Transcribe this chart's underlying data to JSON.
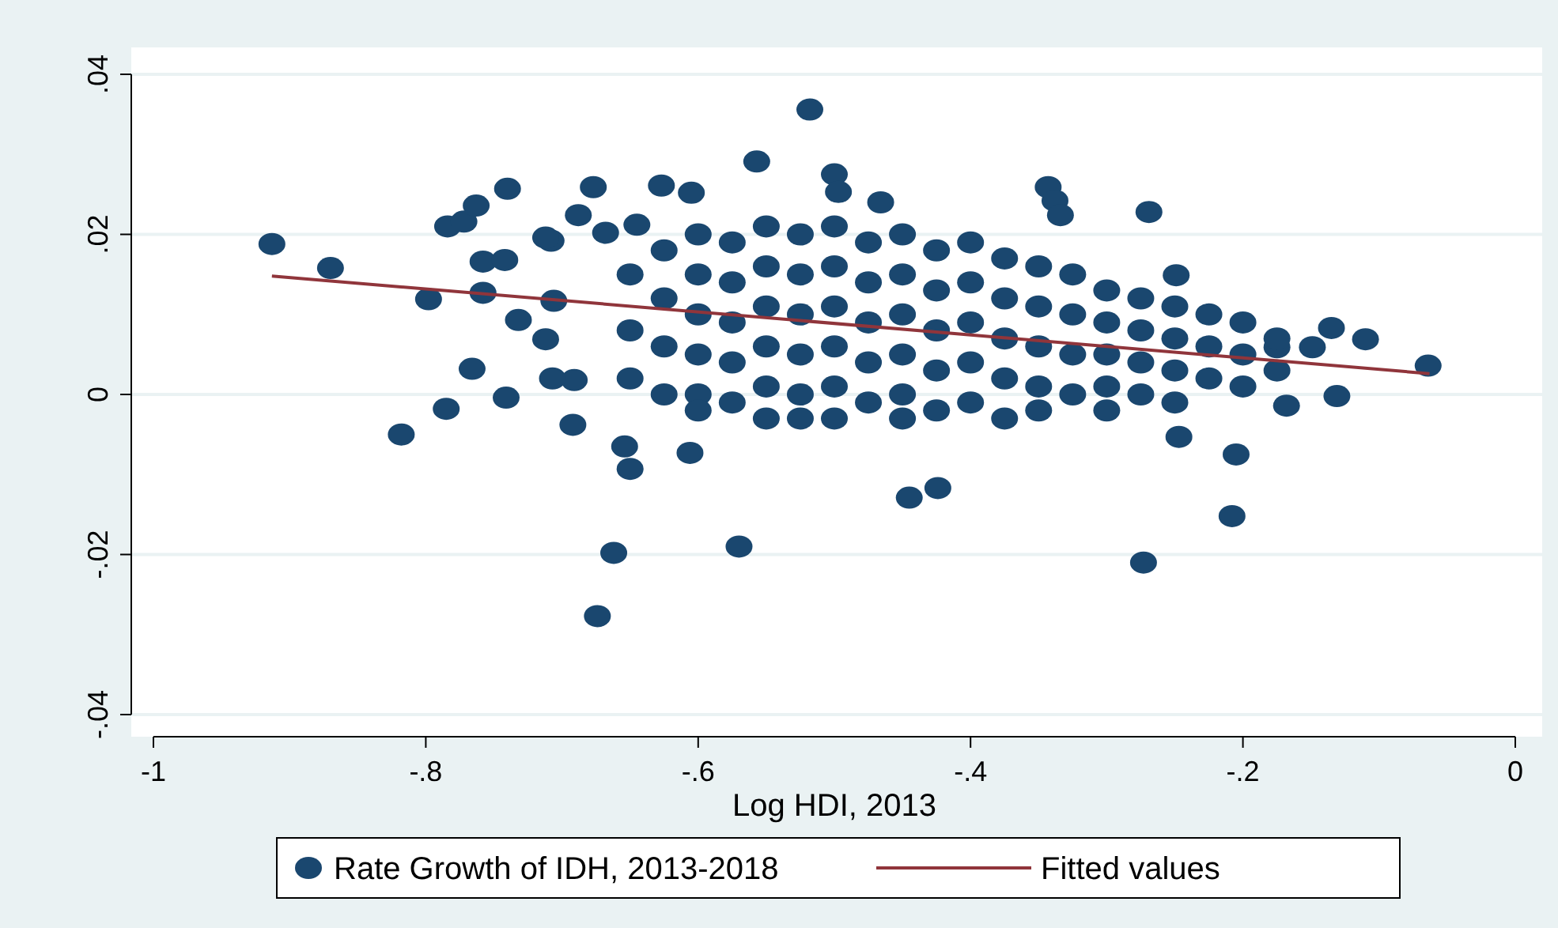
{
  "chart_data": {
    "type": "scatter",
    "xlabel": "Log HDI, 2013",
    "xlim": [
      -1,
      0
    ],
    "ylim": [
      -0.04,
      0.04
    ],
    "xticks": [
      -1,
      {
        "value": -0.8,
        "label": "-.8"
      },
      {
        "value": -0.6,
        "label": "-.6"
      },
      {
        "value": -0.4,
        "label": "-.4"
      },
      {
        "value": -0.2,
        "label": "-.2"
      },
      0
    ],
    "yticks": [
      {
        "value": -0.04,
        "label": "-.04"
      },
      {
        "value": -0.02,
        "label": "-.02"
      },
      0,
      {
        "value": 0.02,
        "label": ".02"
      },
      {
        "value": 0.04,
        "label": ".04"
      }
    ],
    "grid": "y",
    "legend": "bottom",
    "series": [
      {
        "name": "Rate Growth of IDH, 2013-2018",
        "marker": "circle",
        "color": "#1a476f",
        "x": [
          -0.913,
          -0.87,
          -0.798,
          -0.818,
          -0.785,
          -0.784,
          -0.772,
          -0.763,
          -0.74,
          -0.758,
          -0.742,
          -0.758,
          -0.732,
          -0.766,
          -0.741,
          -0.674,
          -0.662,
          -0.57,
          -0.677,
          -0.627,
          -0.605,
          -0.557,
          -0.518,
          -0.5,
          -0.497,
          -0.343,
          -0.338,
          -0.334,
          -0.269,
          -0.466,
          -0.445,
          -0.424,
          -0.273,
          -0.208,
          -0.205,
          -0.247,
          -0.135,
          -0.11,
          -0.064,
          -0.131,
          -0.149,
          -0.175,
          -0.168,
          -0.249,
          -0.706,
          -0.712,
          -0.691,
          -0.707,
          -0.692,
          -0.654,
          -0.65,
          -0.606,
          -0.708,
          -0.712,
          -0.688,
          -0.668,
          -0.645,
          -0.65,
          -0.65,
          -0.65,
          -0.625,
          -0.625,
          -0.625,
          -0.625,
          -0.6,
          -0.6,
          -0.6,
          -0.6,
          -0.6,
          -0.6,
          -0.575,
          -0.575,
          -0.575,
          -0.575,
          -0.575,
          -0.55,
          -0.55,
          -0.55,
          -0.55,
          -0.55,
          -0.55,
          -0.525,
          -0.525,
          -0.525,
          -0.525,
          -0.525,
          -0.525,
          -0.5,
          -0.5,
          -0.5,
          -0.5,
          -0.5,
          -0.5,
          -0.475,
          -0.475,
          -0.475,
          -0.475,
          -0.475,
          -0.45,
          -0.45,
          -0.45,
          -0.45,
          -0.45,
          -0.45,
          -0.425,
          -0.425,
          -0.425,
          -0.425,
          -0.425,
          -0.4,
          -0.4,
          -0.4,
          -0.4,
          -0.4,
          -0.375,
          -0.375,
          -0.375,
          -0.375,
          -0.375,
          -0.35,
          -0.35,
          -0.35,
          -0.35,
          -0.35,
          -0.325,
          -0.325,
          -0.325,
          -0.325,
          -0.3,
          -0.3,
          -0.3,
          -0.3,
          -0.3,
          -0.275,
          -0.275,
          -0.275,
          -0.275,
          -0.25,
          -0.25,
          -0.25,
          -0.25,
          -0.225,
          -0.225,
          -0.225,
          -0.2,
          -0.2,
          -0.2,
          -0.175,
          -0.175
        ],
        "values": [
          0.0188,
          0.0158,
          0.0119,
          -0.005,
          -0.0018,
          0.021,
          0.0216,
          0.0236,
          0.0257,
          0.0166,
          0.0168,
          0.0127,
          0.0093,
          0.0032,
          -0.0004,
          -0.0277,
          -0.0198,
          -0.019,
          0.0259,
          0.0261,
          0.0252,
          0.0291,
          0.0356,
          0.0275,
          0.0253,
          0.0259,
          0.0242,
          0.0224,
          0.0228,
          0.024,
          -0.0129,
          -0.0117,
          -0.021,
          -0.0152,
          -0.0075,
          -0.0053,
          0.0083,
          0.0069,
          0.0036,
          -0.0002,
          0.0059,
          0.0059,
          -0.0014,
          0.0149,
          0.0117,
          0.0069,
          0.0018,
          0.002,
          -0.0038,
          -0.0065,
          -0.0093,
          -0.0073,
          0.0192,
          0.0196,
          0.0224,
          0.0202,
          0.0212,
          0.015,
          0.008,
          0.002,
          0.018,
          0.012,
          0.006,
          0,
          0.02,
          0.015,
          0.01,
          0.005,
          0,
          -0.002,
          0.019,
          0.014,
          0.009,
          0.004,
          -0.001,
          0.021,
          0.016,
          0.011,
          0.006,
          0.001,
          -0.003,
          0.02,
          0.015,
          0.01,
          0.005,
          0,
          -0.003,
          0.021,
          0.016,
          0.011,
          0.006,
          0.001,
          -0.003,
          0.019,
          0.014,
          0.009,
          0.004,
          -0.001,
          0.02,
          0.015,
          0.01,
          0.005,
          0,
          -0.003,
          0.018,
          0.013,
          0.008,
          0.003,
          -0.002,
          0.019,
          0.014,
          0.009,
          0.004,
          -0.001,
          0.017,
          0.012,
          0.007,
          0.002,
          -0.003,
          0.016,
          0.011,
          0.006,
          0.001,
          -0.002,
          0.015,
          0.01,
          0.005,
          0,
          0.013,
          0.009,
          0.005,
          0.001,
          -0.002,
          0.012,
          0.008,
          0.004,
          0,
          0.011,
          0.007,
          0.003,
          -0.001,
          0.01,
          0.006,
          0.002,
          0.009,
          0.005,
          0.001,
          0.007,
          0.003
        ]
      },
      {
        "name": "Fitted values",
        "type": "line",
        "color": "#90353b",
        "x": [
          -0.913,
          -0.063
        ],
        "values": [
          0.0148,
          0.0026
        ]
      }
    ]
  }
}
